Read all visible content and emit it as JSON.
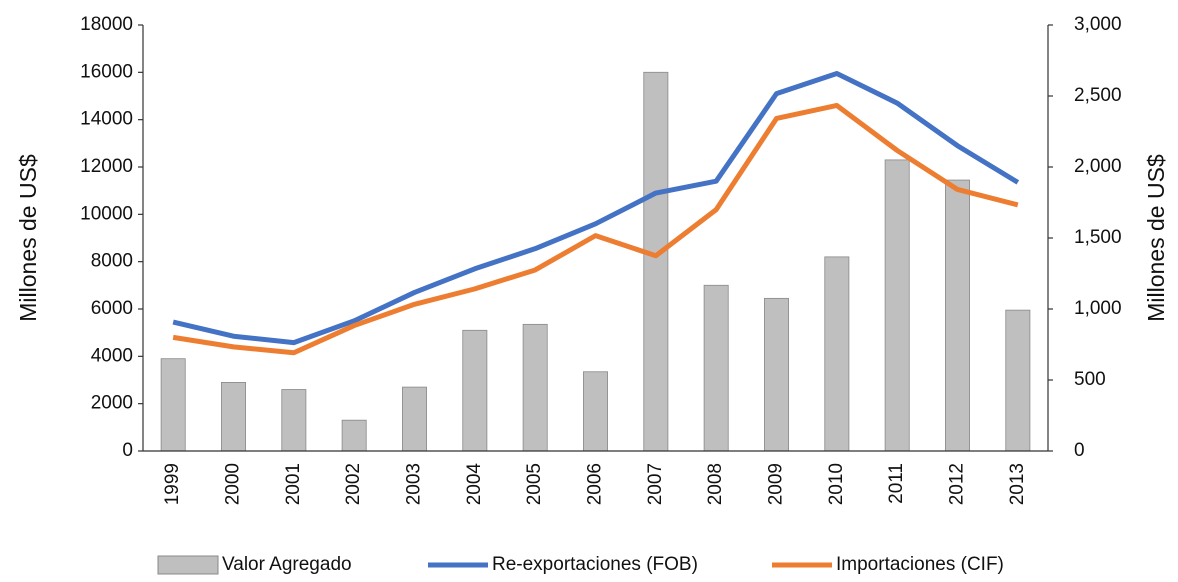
{
  "chart_data": {
    "type": "bar-line",
    "categories": [
      "1999",
      "2000",
      "2001",
      "2002",
      "2003",
      "2004",
      "2005",
      "2006",
      "2007",
      "2008",
      "2009",
      "2010",
      "2011",
      "2012",
      "2013"
    ],
    "ylabel": "Millones de US$",
    "y2label": "Millones de US$",
    "ylim": [
      0,
      18000
    ],
    "yticks": [
      0,
      2000,
      4000,
      6000,
      8000,
      10000,
      12000,
      14000,
      16000,
      18000
    ],
    "y2lim": [
      0,
      3000
    ],
    "y2ticks": [
      0,
      500,
      {
        "value": 1000,
        "label": "1,000"
      },
      {
        "value": 1500,
        "label": "1,500"
      },
      {
        "value": 2000,
        "label": "2,000"
      },
      {
        "value": 2500,
        "label": "2,500"
      },
      {
        "value": 3000,
        "label": "3,000"
      }
    ],
    "series": [
      {
        "name": "Valor Agregado",
        "type": "bar",
        "axis": "y2",
        "color": "#bfbfbf",
        "values": [
          650,
          483,
          433,
          217,
          450,
          850,
          892,
          558,
          2667,
          1167,
          1075,
          1367,
          2050,
          1908,
          992
        ]
      },
      {
        "name": "Re-exportaciones (FOB)",
        "type": "line",
        "color": "#4472c4",
        "values": [
          5450,
          4850,
          4580,
          5500,
          6700,
          7700,
          8550,
          9600,
          10900,
          11400,
          15100,
          15950,
          14700,
          12900,
          11350
        ]
      },
      {
        "name": "Importaciones (CIF)",
        "type": "line",
        "color": "#ed7d31",
        "values": [
          4800,
          4400,
          4150,
          5300,
          6200,
          6850,
          7650,
          9100,
          8250,
          10200,
          14050,
          14600,
          12700,
          11050,
          10400
        ]
      }
    ]
  }
}
